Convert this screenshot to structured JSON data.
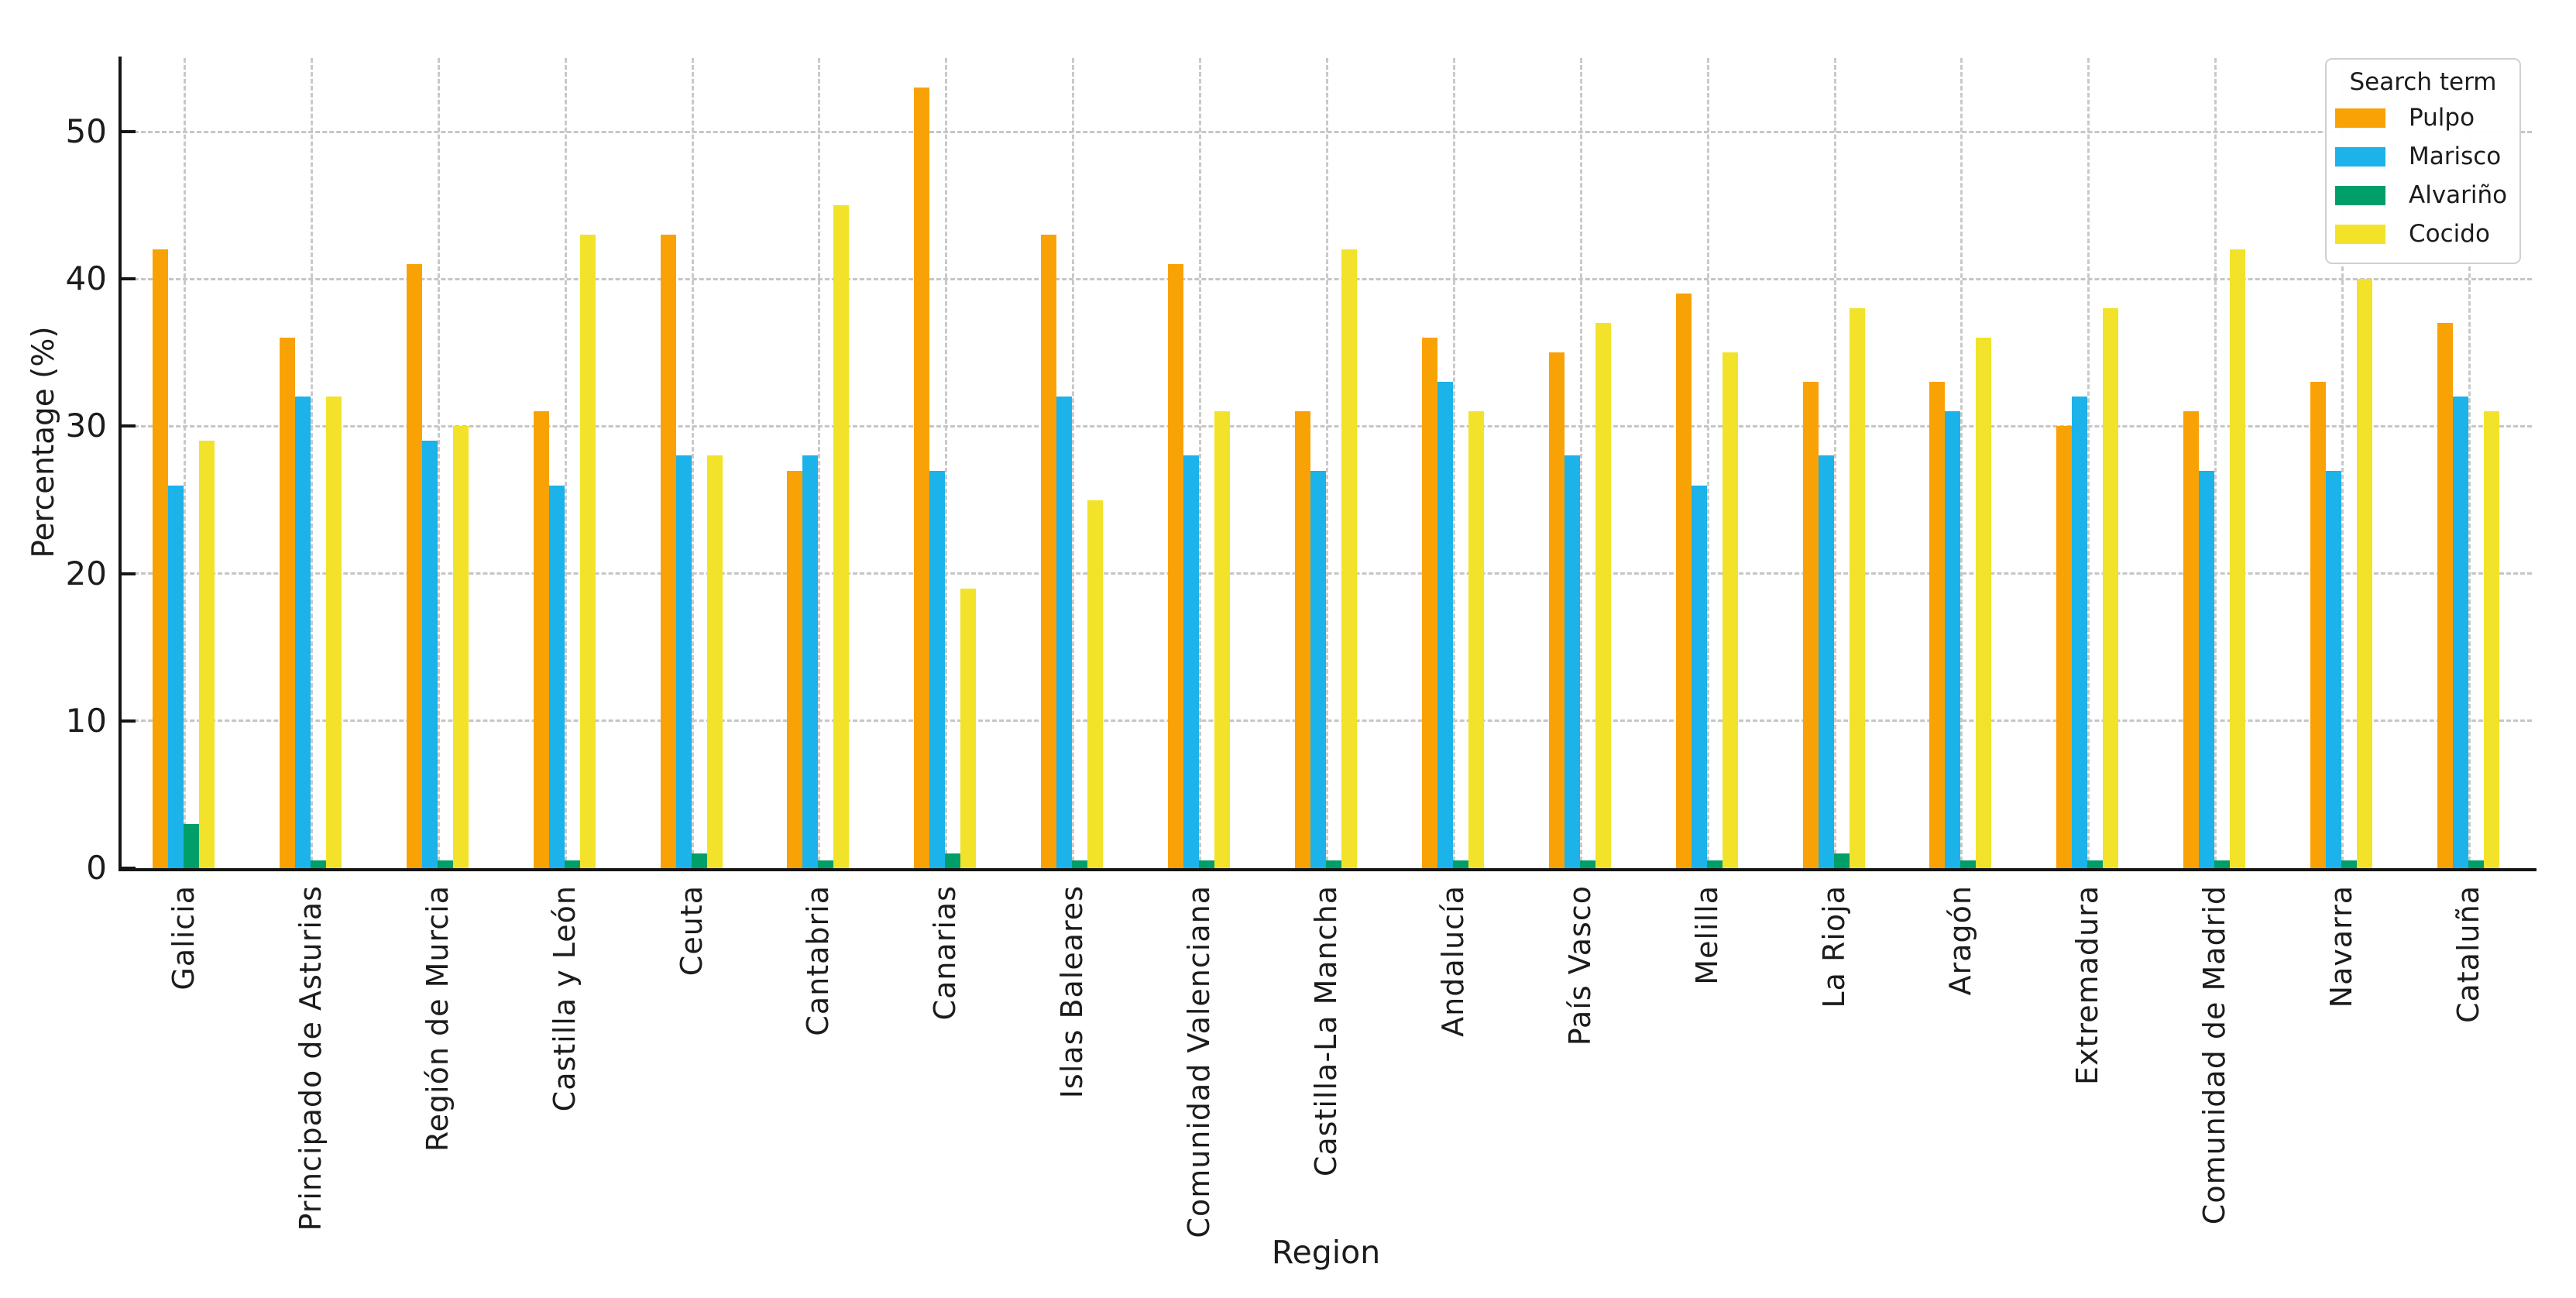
{
  "chart_data": {
    "type": "bar",
    "title": "",
    "xlabel": "Region",
    "ylabel": "Percentage (%)",
    "legend_title": "Search term",
    "legend_position": "upper right",
    "grid": true,
    "grid_style": "dashed",
    "ylim": [
      0,
      55
    ],
    "yticks": [
      0,
      10,
      20,
      30,
      40,
      50
    ],
    "categories": [
      "Galicia",
      "Principado de Asturias",
      "Región de Murcia",
      "Castilla y León",
      "Ceuta",
      "Cantabria",
      "Canarias",
      "Islas Baleares",
      "Comunidad Valenciana",
      "Castilla-La Mancha",
      "Andalucía",
      "País Vasco",
      "Melilla",
      "La Rioja",
      "Aragón",
      "Extremadura",
      "Comunidad de Madrid",
      "Navarra",
      "Cataluña"
    ],
    "series": [
      {
        "name": "Pulpo",
        "color": "#F9A206",
        "values": [
          42,
          36,
          41,
          31,
          43,
          27,
          53,
          43,
          41,
          31,
          36,
          35,
          39,
          33,
          33,
          30,
          31,
          33,
          37
        ]
      },
      {
        "name": "Marisco",
        "color": "#1CB2EA",
        "values": [
          26,
          32,
          29,
          26,
          28,
          28,
          27,
          32,
          28,
          27,
          33,
          28,
          26,
          28,
          31,
          32,
          27,
          27,
          32
        ]
      },
      {
        "name": "Alvariño",
        "color": "#009E68",
        "values": [
          3,
          0.5,
          0.5,
          0.5,
          1,
          0.5,
          1,
          0.5,
          0.5,
          0.5,
          0.5,
          0.5,
          0.5,
          1,
          0.5,
          0.5,
          0.5,
          0.5,
          0.5
        ]
      },
      {
        "name": "Cocido",
        "color": "#F2E32A",
        "values": [
          29,
          32,
          30,
          43,
          28,
          45,
          19,
          25,
          31,
          42,
          31,
          37,
          35,
          38,
          36,
          38,
          42,
          40,
          31
        ]
      }
    ]
  }
}
